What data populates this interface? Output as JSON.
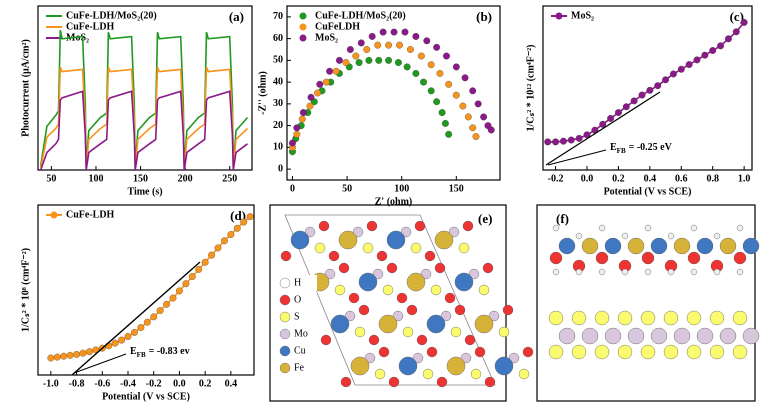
{
  "chart_data": [
    {
      "type": "line",
      "panel_label": "(a)",
      "xlabel": "Time (s)",
      "ylabel": "Photocurrent (μA/cm²)",
      "xlim": [
        35,
        275
      ],
      "xticks": [
        50,
        100,
        150,
        200,
        250
      ],
      "ylim": [
        0,
        75
      ],
      "legend": "upper left",
      "x": [
        38,
        45,
        55,
        58,
        60,
        62,
        85,
        88,
        89,
        92,
        105,
        112,
        114,
        116,
        140,
        143,
        144,
        147,
        160,
        167,
        169,
        171,
        195,
        198,
        199,
        202,
        215,
        222,
        224,
        226,
        250,
        253,
        254,
        257,
        270
      ],
      "series": [
        {
          "name": "CuFe-LDH/MoS₂(20)",
          "color": "#1f9a1f",
          "values": [
            2,
            20,
            25,
            27,
            64,
            60,
            61,
            30,
            2,
            18,
            24,
            26,
            63,
            60,
            61,
            30,
            2,
            18,
            24,
            26,
            63,
            60,
            61,
            30,
            2,
            18,
            24,
            26,
            63,
            60,
            61,
            30,
            2,
            18,
            24
          ]
        },
        {
          "name": "CuFe-LDH",
          "color": "#f7941d",
          "values": [
            1,
            15,
            19,
            21,
            47,
            45,
            46,
            22,
            1,
            14,
            19,
            21,
            47,
            45,
            46,
            22,
            1,
            14,
            19,
            21,
            47,
            45,
            46,
            22,
            1,
            14,
            19,
            21,
            47,
            45,
            46,
            22,
            1,
            14,
            19
          ]
        },
        {
          "name": "MoS₂",
          "color": "#8b1a89",
          "values": [
            0,
            8,
            12,
            14,
            32,
            33,
            36,
            16,
            0,
            8,
            12,
            14,
            32,
            33,
            36,
            16,
            0,
            8,
            12,
            14,
            32,
            33,
            36,
            16,
            0,
            8,
            12,
            14,
            32,
            33,
            36,
            16,
            0,
            8,
            12
          ]
        }
      ]
    },
    {
      "type": "scatter",
      "panel_label": "(b)",
      "xlabel": "Z' (ohm)",
      "ylabel": "-Z'' (ohm)",
      "xlim": [
        -5,
        190
      ],
      "xticks": [
        0,
        50,
        100,
        150
      ],
      "ylim": [
        -5,
        75
      ],
      "yticks": [
        0,
        10,
        20,
        30,
        40,
        50,
        60,
        70
      ],
      "legend": "upper left",
      "series": [
        {
          "name": "CuFe-LDH/MoS₂(20)",
          "color": "#1f9a1f",
          "x": [
            0,
            3,
            8,
            14,
            20,
            27,
            35,
            43,
            52,
            61,
            70,
            79,
            88,
            97,
            105,
            113,
            120,
            127,
            132,
            137,
            140,
            143
          ],
          "values": [
            8,
            14,
            20,
            26,
            31,
            36,
            40,
            44,
            47,
            49,
            50,
            50,
            50,
            49,
            47,
            44,
            40,
            36,
            31,
            26,
            21,
            16
          ]
        },
        {
          "name": "CuFeLDH",
          "color": "#f7941d",
          "x": [
            0,
            4,
            9,
            16,
            23,
            31,
            40,
            49,
            58,
            68,
            78,
            88,
            98,
            108,
            118,
            127,
            135,
            143,
            150,
            156,
            161,
            165,
            168
          ],
          "values": [
            10,
            16,
            23,
            29,
            35,
            40,
            45,
            49,
            52,
            55,
            57,
            57,
            57,
            55,
            52,
            48,
            44,
            39,
            34,
            29,
            24,
            19,
            15
          ]
        },
        {
          "name": "MoS₂",
          "color": "#8b1a89",
          "x": [
            0,
            4,
            10,
            17,
            25,
            34,
            43,
            53,
            63,
            73,
            83,
            93,
            103,
            113,
            123,
            132,
            141,
            150,
            158,
            165,
            170,
            175,
            179,
            182
          ],
          "values": [
            12,
            19,
            26,
            33,
            39,
            45,
            50,
            55,
            58,
            61,
            63,
            63,
            63,
            61,
            59,
            56,
            52,
            47,
            42,
            36,
            30,
            24,
            20,
            18
          ]
        }
      ]
    },
    {
      "type": "line",
      "markers": true,
      "panel_label": "(c)",
      "xlabel": "Potential (V vs SCE)",
      "ylabel": "1/Cₛ² * 10¹² (cm⁴F⁻²)",
      "xlim": [
        -0.28,
        1.05
      ],
      "xticks": [
        -0.2,
        {
          "value": 0,
          "label": "0.0"
        },
        0.2,
        0.4,
        0.6,
        0.8,
        {
          "value": 1,
          "label": "1.0"
        }
      ],
      "ylim": [
        0,
        70
      ],
      "legend": "upper left",
      "annotation": [
        "E",
        "FB",
        "= -0.25 eV"
      ],
      "x": [
        -0.25,
        -0.2,
        -0.15,
        -0.1,
        -0.05,
        0,
        0.05,
        0.1,
        0.15,
        0.2,
        0.25,
        0.3,
        0.35,
        0.4,
        0.45,
        0.5,
        0.55,
        0.6,
        0.65,
        0.7,
        0.75,
        0.8,
        0.85,
        0.9,
        0.95,
        1.0
      ],
      "series": [
        {
          "name": "MoS₂",
          "color": "#8b1a89",
          "values": [
            12,
            12,
            12.3,
            12.8,
            13.5,
            15,
            17,
            19.5,
            22,
            24.5,
            27,
            29.5,
            32,
            34,
            36,
            38.5,
            41,
            43,
            45,
            47,
            49,
            51,
            53,
            56,
            59,
            63
          ]
        }
      ]
    },
    {
      "type": "line",
      "markers": true,
      "panel_label": "(d)",
      "xlabel": "Potential (V vs SCE)",
      "ylabel": "1/Cₛ² * 10⁸ (cm⁴F⁻²)",
      "xlim": [
        -1.1,
        0.58
      ],
      "xticks": [
        {
          "value": -1,
          "label": "-1.0"
        },
        -0.8,
        -0.6,
        -0.4,
        -0.2,
        {
          "value": 0,
          "label": "0.0"
        },
        0.2,
        0.4
      ],
      "ylim": [
        0,
        95
      ],
      "legend": "upper left",
      "annotation": [
        "E",
        "FB",
        "= -0.83 ev"
      ],
      "x": [
        -1.0,
        -0.95,
        -0.9,
        -0.85,
        -0.8,
        -0.75,
        -0.7,
        -0.65,
        -0.6,
        -0.55,
        -0.5,
        -0.45,
        -0.4,
        -0.35,
        -0.3,
        -0.25,
        -0.2,
        -0.15,
        -0.1,
        -0.05,
        0,
        0.05,
        0.1,
        0.15,
        0.2,
        0.25,
        0.3,
        0.35,
        0.4,
        0.45,
        0.5,
        0.55
      ],
      "series": [
        {
          "name": "CuFe-LDH",
          "color": "#f7941d",
          "values": [
            9.5,
            10,
            10.5,
            11,
            11.5,
            12.2,
            13,
            14,
            15,
            16.3,
            17.8,
            19.5,
            21.5,
            23.8,
            26.5,
            29.5,
            32.5,
            36,
            39.5,
            43,
            47,
            51,
            55,
            59,
            63,
            67,
            71,
            75,
            78.5,
            82,
            85.5,
            88.5
          ]
        }
      ]
    }
  ],
  "structures": [
    {
      "panel_label": "(e)",
      "legend": [
        "H",
        "O",
        "S",
        "Mo",
        "Cu",
        "Fe"
      ]
    },
    {
      "panel_label": "(f)"
    }
  ]
}
